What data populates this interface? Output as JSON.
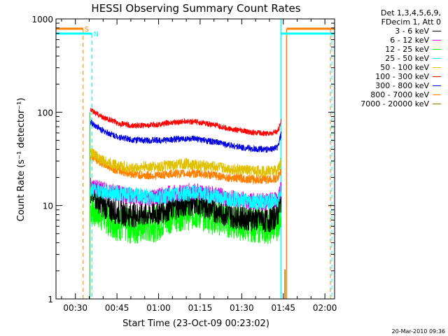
{
  "chart_data": {
    "type": "line",
    "title": "HESSI Observing Summary Count Rates",
    "xlabel": "Start Time (23-Oct-09 00:23:02)",
    "ylabel": "Count Rate (s⁻¹ detector⁻¹)",
    "yscale": "log",
    "ylim": [
      1,
      1000
    ],
    "xlim_minutes": [
      23.0,
      123.5
    ],
    "x_ticks": [
      {
        "label": "00:30",
        "minute": 30
      },
      {
        "label": "00:45",
        "minute": 45
      },
      {
        "label": "01:00",
        "minute": 60
      },
      {
        "label": "01:15",
        "minute": 75
      },
      {
        "label": "01:30",
        "minute": 90
      },
      {
        "label": "01:45",
        "minute": 105
      },
      {
        "label": "02:00",
        "minute": 120
      }
    ],
    "y_ticks": [
      {
        "label": "1",
        "value": 1
      },
      {
        "label": "10",
        "value": 10
      },
      {
        "label": "100",
        "value": 100
      },
      {
        "label": "1000",
        "value": 1000
      }
    ],
    "data_start_minute": 35.5,
    "data_end_minute": 104.3,
    "legend_header": [
      "Det 1,3,4,5,6,9,",
      "FDecim 1, Att 0"
    ],
    "legend_placement": "right",
    "series": [
      {
        "name": "3 - 6 keV",
        "color": "#000000",
        "x": [
          35.5,
          40,
          45,
          50,
          55,
          60,
          65,
          70,
          75,
          80,
          85,
          90,
          95,
          100,
          103,
          104.3
        ],
        "y": [
          14,
          10,
          8.5,
          8,
          8,
          8.5,
          9.5,
          10.5,
          10.5,
          9,
          8,
          7.5,
          7.2,
          7,
          8,
          12
        ]
      },
      {
        "name": "6 - 12 keV",
        "color": "#e000e0",
        "x": [
          35.5,
          40,
          45,
          50,
          55,
          60,
          65,
          70,
          75,
          80,
          85,
          90,
          95,
          100,
          103,
          104.3
        ],
        "y": [
          16,
          14.5,
          13.5,
          12.5,
          12,
          12.5,
          13.5,
          14,
          14,
          13,
          12,
          11.5,
          11,
          11,
          12,
          16
        ]
      },
      {
        "name": "12 - 25 keV",
        "color": "#00ff00",
        "x": [
          35.5,
          40,
          45,
          50,
          55,
          60,
          65,
          70,
          75,
          80,
          85,
          90,
          95,
          100,
          103,
          104.3
        ],
        "y": [
          9.5,
          8,
          6.5,
          6,
          6,
          6.5,
          8,
          8.5,
          8.5,
          7.5,
          7,
          6.5,
          6.2,
          6,
          6.5,
          9
        ]
      },
      {
        "name": "25 - 50 keV",
        "color": "#00ffff",
        "x": [
          35.5,
          40,
          45,
          50,
          55,
          60,
          65,
          70,
          75,
          80,
          85,
          90,
          95,
          100,
          103,
          104.3
        ],
        "y": [
          15,
          14,
          13.5,
          13,
          12.5,
          12.5,
          13,
          13.5,
          13.5,
          12.5,
          12,
          11.5,
          11,
          11,
          11.5,
          15
        ]
      },
      {
        "name": "50 - 100 keV",
        "color": "#e0c000",
        "x": [
          35.5,
          40,
          45,
          50,
          55,
          60,
          65,
          70,
          75,
          80,
          85,
          90,
          95,
          100,
          103,
          104.3
        ],
        "y": [
          38,
          30,
          27,
          25,
          26,
          26,
          27,
          28,
          27,
          26,
          25,
          24,
          23.5,
          23.5,
          24,
          30
        ]
      },
      {
        "name": "100 - 300 keV",
        "color": "#ff0000",
        "x": [
          35.5,
          40,
          45,
          50,
          55,
          60,
          65,
          70,
          75,
          80,
          85,
          90,
          95,
          100,
          103,
          104.3
        ],
        "y": [
          105,
          88,
          77,
          72,
          72,
          74,
          78,
          80,
          78,
          73,
          67,
          63,
          60,
          59,
          62,
          80
        ]
      },
      {
        "name": "300 - 800 keV",
        "color": "#0000e0",
        "x": [
          35.5,
          40,
          45,
          50,
          55,
          60,
          65,
          70,
          75,
          80,
          85,
          90,
          95,
          100,
          103,
          104.3
        ],
        "y": [
          78,
          63,
          55,
          51,
          50,
          50,
          51,
          52,
          51,
          48,
          45,
          42,
          40,
          40,
          42,
          60
        ]
      },
      {
        "name": "800 - 7000 keV",
        "color": "#ff8000",
        "x": [
          35.5,
          40,
          45,
          50,
          55,
          60,
          65,
          70,
          75,
          80,
          85,
          90,
          95,
          100,
          103,
          104.3
        ],
        "y": [
          34,
          28,
          24,
          22,
          21,
          21,
          22,
          22,
          22,
          21,
          20,
          19.5,
          19,
          19,
          19.5,
          24
        ]
      },
      {
        "name": "7000 - 20000 keV",
        "color": "#a07000",
        "x": [],
        "y": []
      }
    ],
    "annotations": [
      {
        "text": "S",
        "color": "#ff8000"
      },
      {
        "text": "N",
        "color": "#00ffff"
      }
    ]
  },
  "timestamp": "20-Mar-2010 09:36"
}
